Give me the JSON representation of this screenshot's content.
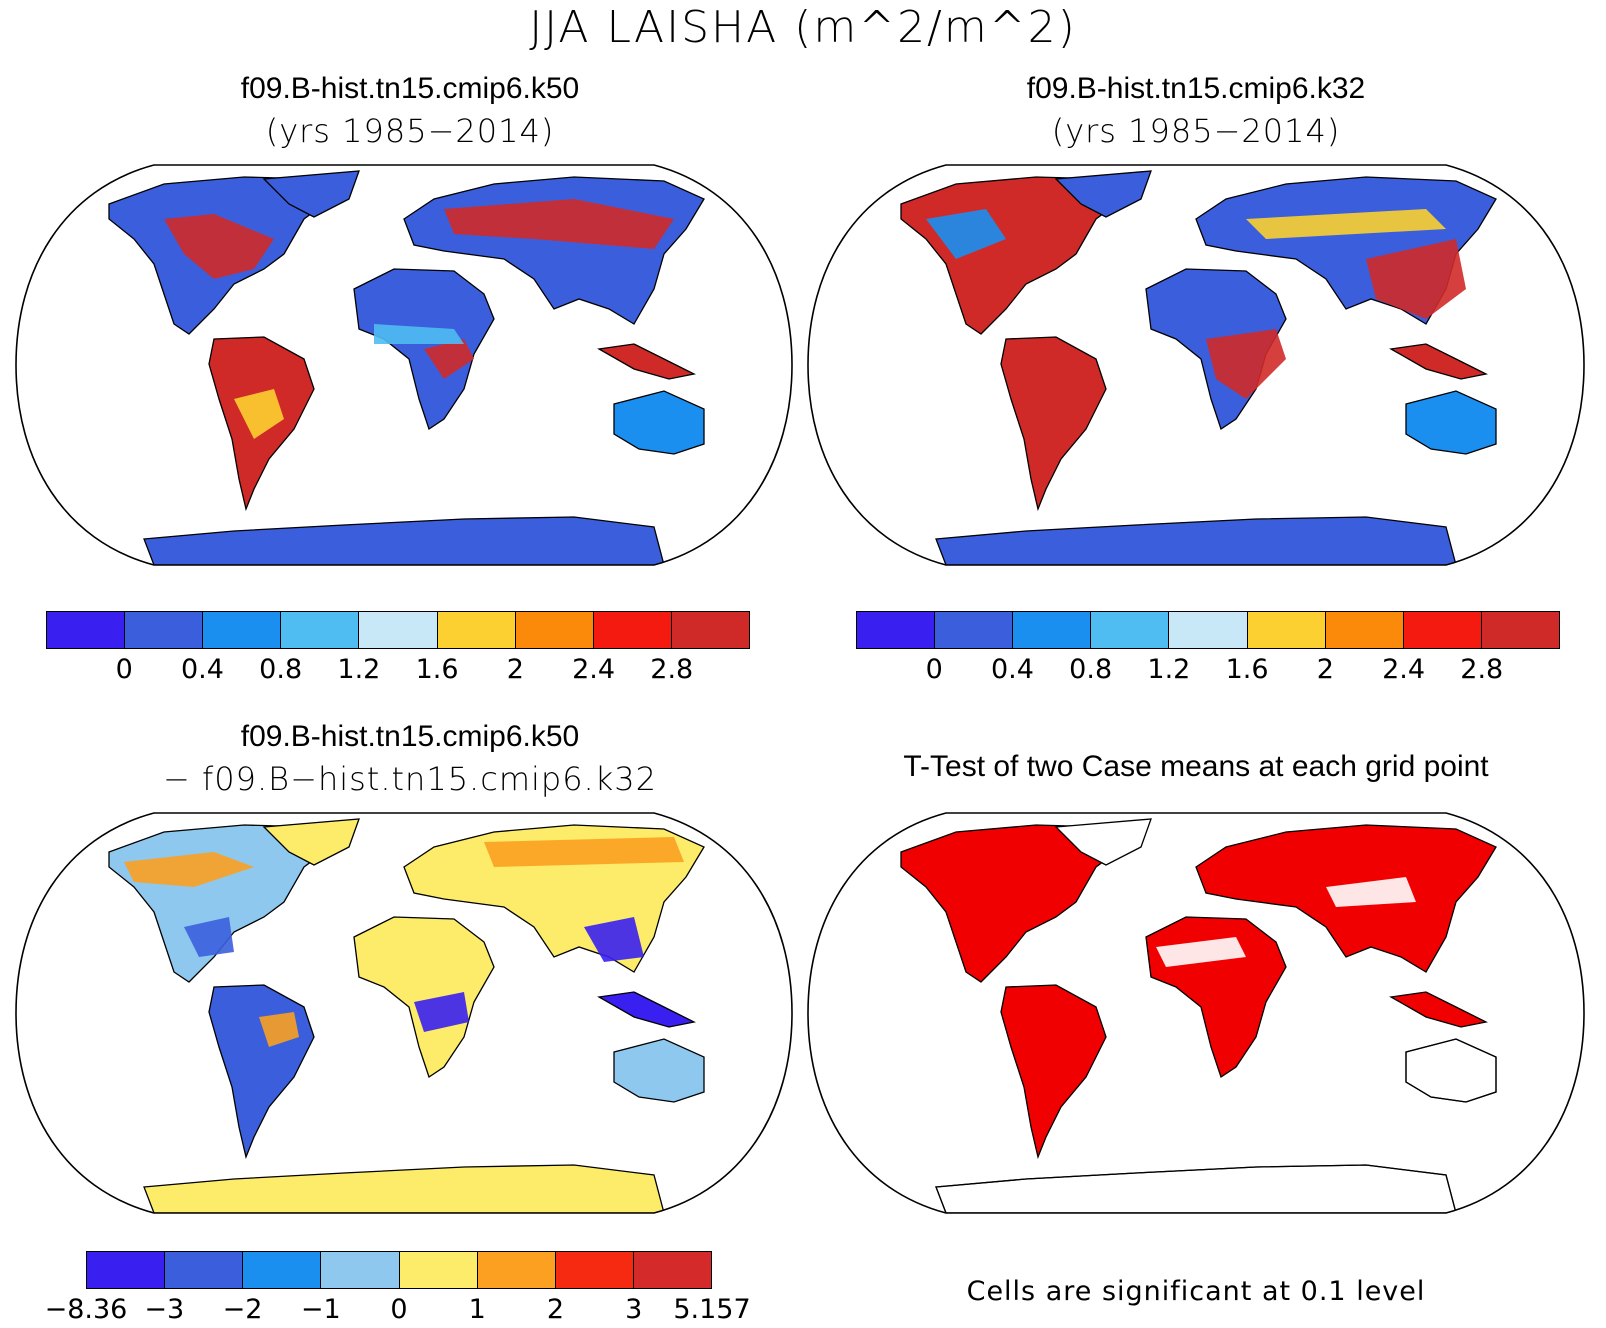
{
  "figure": {
    "main_title": "JJA LAISHA (m^2/m^2)"
  },
  "panels": [
    {
      "title": "f09.B-hist.tn15.cmip6.k50",
      "subtitle": "(yrs 1985−2014)",
      "colorbar_colors": [
        "#3a20f0",
        "#3b5fdc",
        "#1a8ff0",
        "#4fbcf2",
        "#c9e8f7",
        "#fcd030",
        "#fb8a0a",
        "#f51a10",
        "#d02a28"
      ],
      "colorbar_labels": [
        "0",
        "0.4",
        "0.8",
        "1.2",
        "1.6",
        "2",
        "2.4",
        "2.8"
      ]
    },
    {
      "title": "f09.B-hist.tn15.cmip6.k32",
      "subtitle": "(yrs 1985−2014)",
      "colorbar_colors": [
        "#3a20f0",
        "#3b5fdc",
        "#1a8ff0",
        "#4fbcf2",
        "#c9e8f7",
        "#fcd030",
        "#fb8a0a",
        "#f51a10",
        "#d02a28"
      ],
      "colorbar_labels": [
        "0",
        "0.4",
        "0.8",
        "1.2",
        "1.6",
        "2",
        "2.4",
        "2.8"
      ]
    },
    {
      "title": "f09.B-hist.tn15.cmip6.k50",
      "subtitle": "− f09.B−hist.tn15.cmip6.k32",
      "colorbar_colors": [
        "#3a20f0",
        "#3b5fdc",
        "#1a8ff0",
        "#8ec8ee",
        "#fcec6a",
        "#fba020",
        "#f52a10",
        "#d42a2a"
      ],
      "colorbar_labels": [
        "−8.36",
        "−3",
        "−2",
        "−1",
        "0",
        "1",
        "2",
        "3",
        "5.157"
      ]
    },
    {
      "title": "T-Test of two Case means at each grid point",
      "note": "Cells are significant at 0.1 level",
      "fill_color": "#f00000"
    }
  ]
}
